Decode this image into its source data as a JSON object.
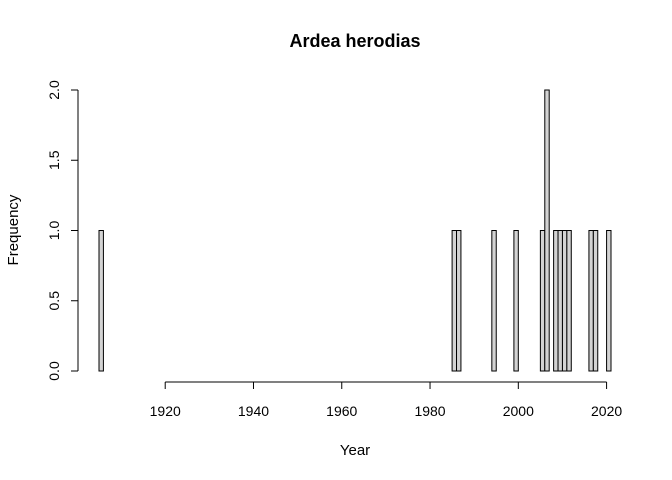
{
  "chart_data": {
    "type": "bar",
    "title": "Ardea herodias",
    "xlabel": "Year",
    "ylabel": "Frequency",
    "xlim": [
      1905,
      2021
    ],
    "ylim": [
      0,
      2
    ],
    "x_ticks": [
      1920,
      1940,
      1960,
      1980,
      2000,
      2020
    ],
    "y_ticks": [
      "0.0",
      "0.5",
      "1.0",
      "1.5",
      "2.0"
    ],
    "bin_width": 1,
    "bins": [
      {
        "year": 1905,
        "count": 1
      },
      {
        "year": 1985,
        "count": 1
      },
      {
        "year": 1986,
        "count": 1
      },
      {
        "year": 1994,
        "count": 1
      },
      {
        "year": 1999,
        "count": 1
      },
      {
        "year": 2005,
        "count": 1
      },
      {
        "year": 2006,
        "count": 2
      },
      {
        "year": 2008,
        "count": 1
      },
      {
        "year": 2009,
        "count": 1
      },
      {
        "year": 2010,
        "count": 1
      },
      {
        "year": 2011,
        "count": 1
      },
      {
        "year": 2016,
        "count": 1
      },
      {
        "year": 2017,
        "count": 1
      },
      {
        "year": 2020,
        "count": 1
      }
    ],
    "bar_color": "#d3d3d3",
    "grid": false
  }
}
